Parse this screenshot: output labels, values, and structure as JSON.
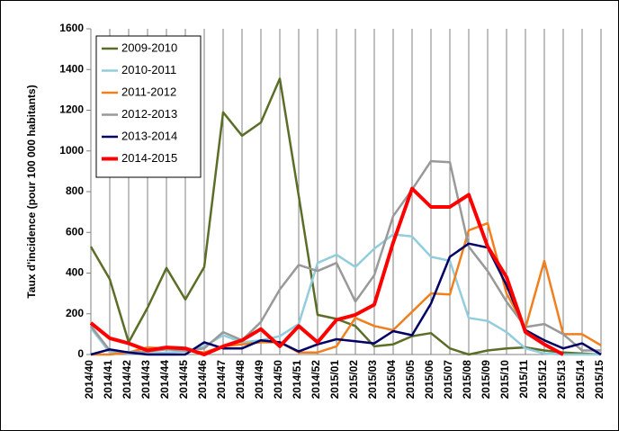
{
  "chart_data": {
    "type": "line",
    "y_label": "Taux d'incidence (pour 100 000 habitants)",
    "categories": [
      "2014/40",
      "2014/41",
      "2014/42",
      "2014/43",
      "2014/44",
      "2014/45",
      "2014/46",
      "2014/47",
      "2014/48",
      "2014/49",
      "2014/50",
      "2014/51",
      "2014/52",
      "2015/01",
      "2015/02",
      "2015/03",
      "2015/04",
      "2015/05",
      "2015/06",
      "2015/07",
      "2015/08",
      "2015/09",
      "2015/10",
      "2015/11",
      "2015/12",
      "2015/13",
      "2015/14",
      "2015/15"
    ],
    "ylim": [
      0,
      1600
    ],
    "yticks": [
      0,
      200,
      400,
      600,
      800,
      1000,
      1200,
      1400,
      1600
    ],
    "grid": true,
    "legend": "upper left",
    "series": [
      {
        "name": "2009-2010",
        "color": "#5b6e28",
        "values": [
          530,
          370,
          60,
          230,
          425,
          270,
          430,
          1190,
          1075,
          1140,
          1355,
          780,
          195,
          175,
          140,
          40,
          50,
          90,
          105,
          30,
          0,
          20,
          30,
          35,
          20,
          10,
          5,
          0
        ]
      },
      {
        "name": "2010-2011",
        "color": "#92cddc",
        "values": [
          130,
          10,
          5,
          5,
          10,
          15,
          40,
          95,
          60,
          70,
          90,
          150,
          450,
          490,
          430,
          520,
          590,
          580,
          480,
          460,
          180,
          165,
          110,
          30,
          5,
          0,
          0,
          0
        ]
      },
      {
        "name": "2011-2012",
        "color": "#f07f1e",
        "values": [
          0,
          0,
          10,
          35,
          30,
          20,
          10,
          40,
          50,
          60,
          60,
          10,
          10,
          40,
          180,
          140,
          120,
          210,
          300,
          295,
          610,
          645,
          300,
          130,
          460,
          100,
          100,
          45
        ]
      },
      {
        "name": "2012-2013",
        "color": "#999999",
        "values": [
          140,
          20,
          10,
          15,
          25,
          20,
          30,
          110,
          70,
          160,
          320,
          440,
          410,
          450,
          260,
          390,
          680,
          810,
          950,
          945,
          530,
          410,
          260,
          135,
          150,
          100,
          20,
          20
        ]
      },
      {
        "name": "2013-2014",
        "color": "#000066",
        "values": [
          0,
          25,
          10,
          0,
          0,
          0,
          60,
          30,
          30,
          70,
          60,
          15,
          50,
          75,
          65,
          55,
          115,
          95,
          250,
          480,
          545,
          525,
          340,
          120,
          70,
          30,
          55,
          0
        ]
      },
      {
        "name": "2014-2015",
        "color": "#ff0000",
        "values": [
          155,
          80,
          55,
          20,
          35,
          30,
          0,
          40,
          70,
          125,
          40,
          140,
          60,
          170,
          195,
          245,
          550,
          815,
          725,
          725,
          785,
          530,
          380,
          110,
          50,
          0,
          null,
          null
        ]
      }
    ]
  }
}
